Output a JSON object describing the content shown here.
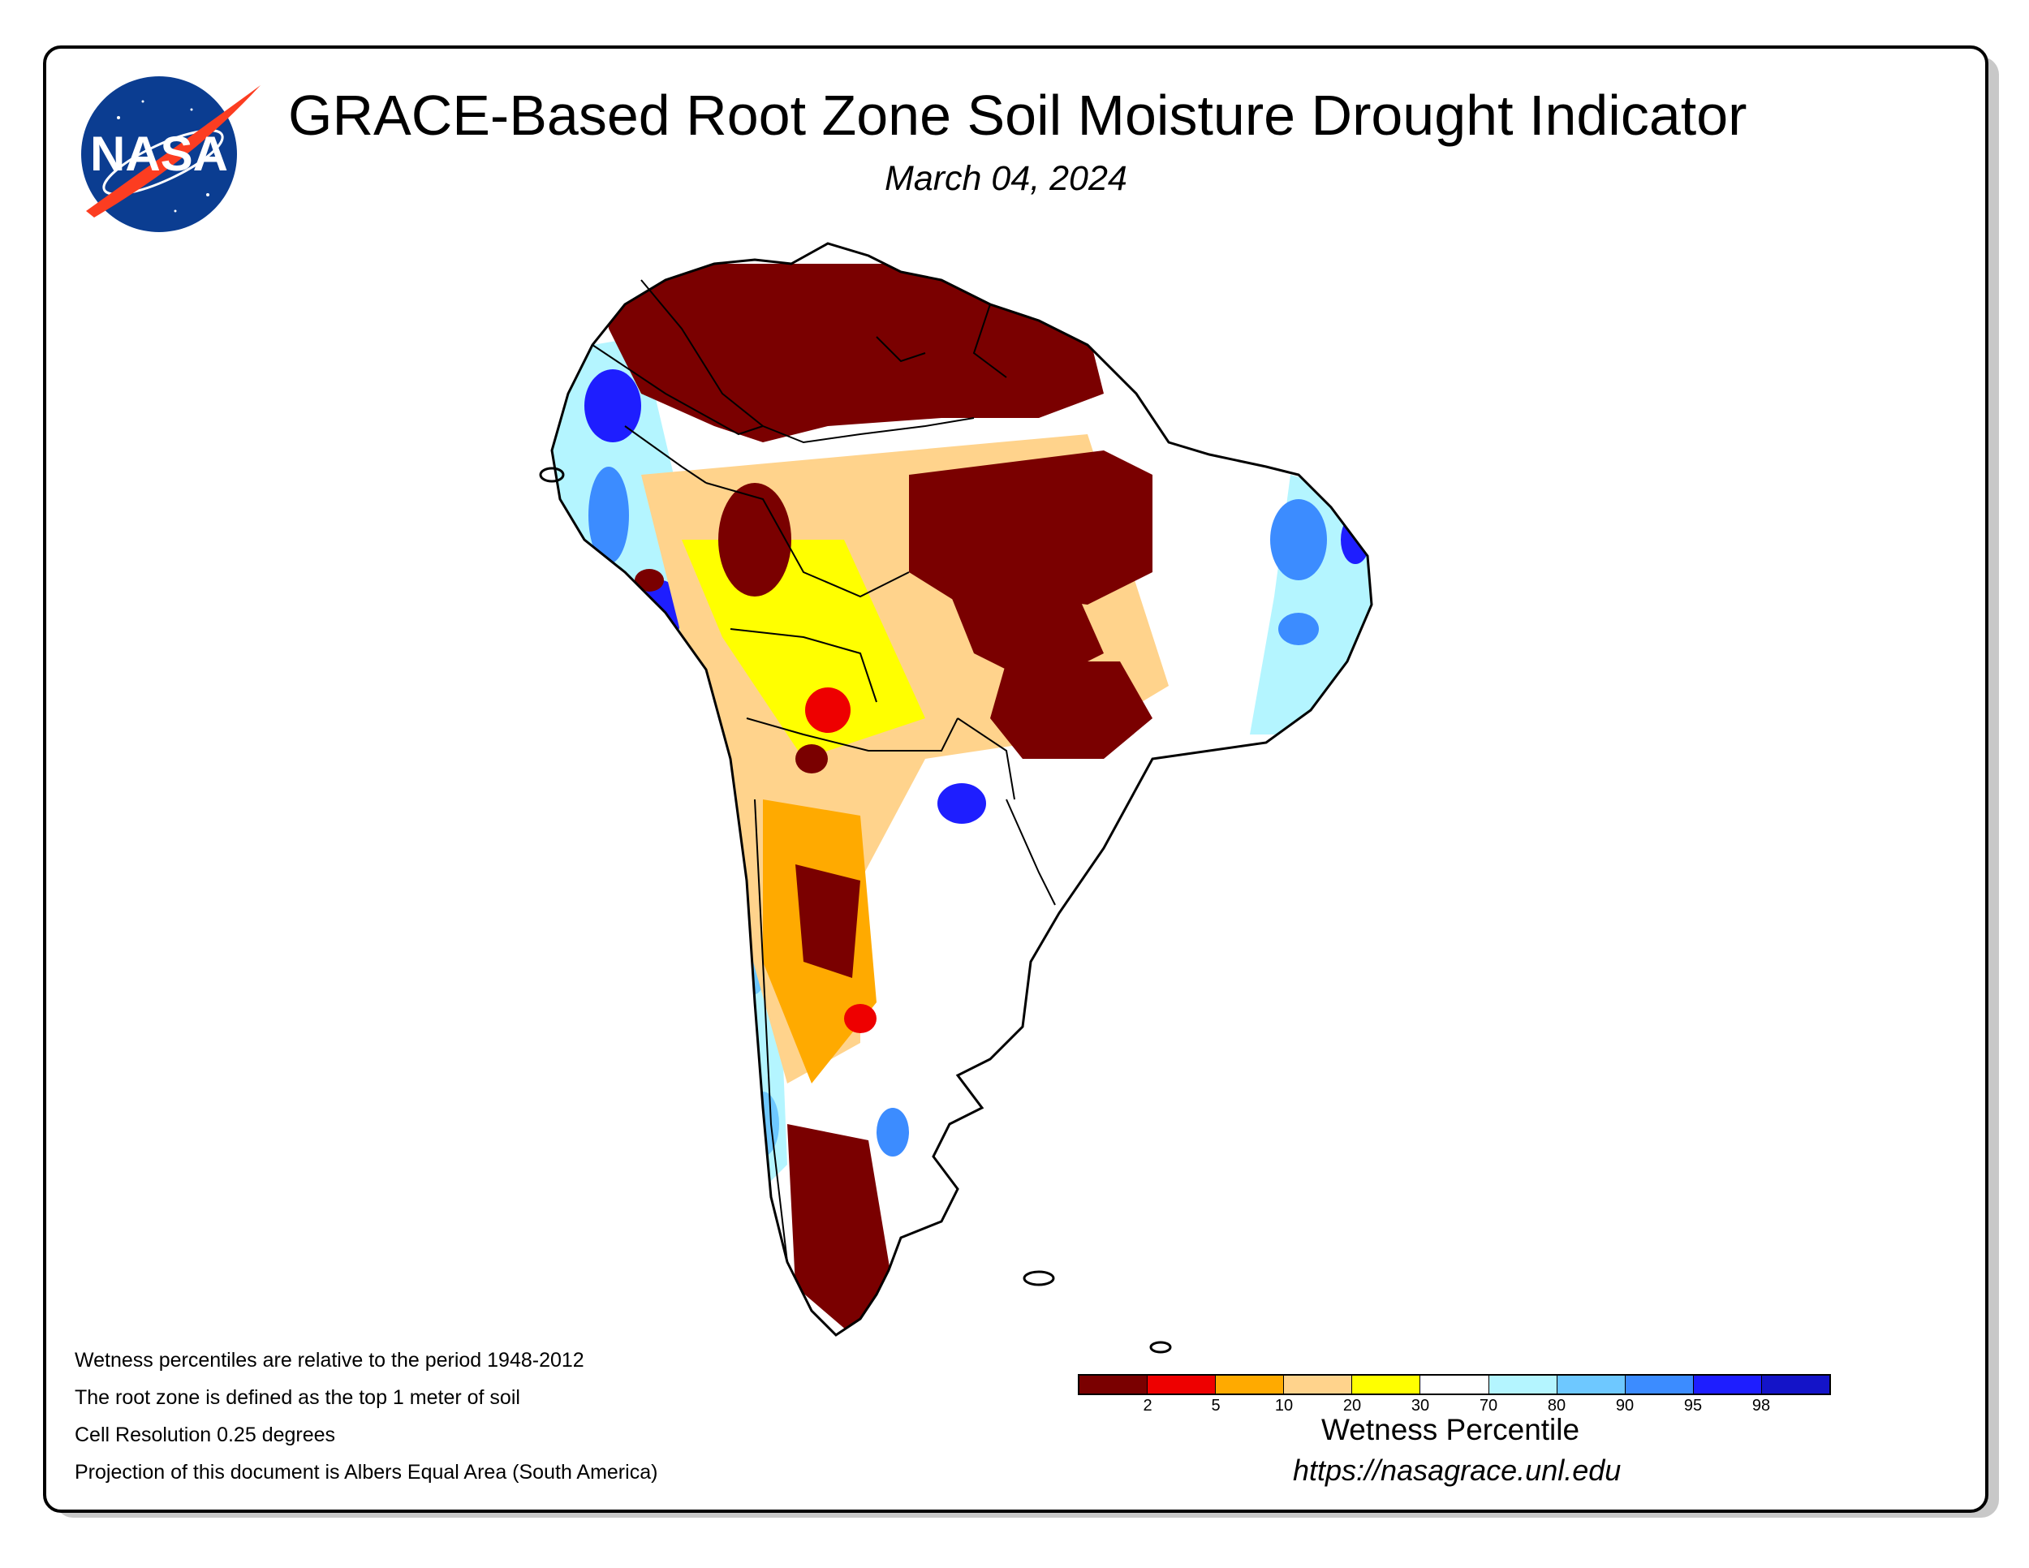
{
  "header": {
    "title": "GRACE-Based Root Zone Soil Moisture Drought Indicator",
    "date": "March 04, 2024",
    "logo_text": "NASA"
  },
  "notes": [
    "Wetness percentiles are relative to the period 1948-2012",
    "The root zone is defined as the top 1 meter of soil",
    "Cell Resolution 0.25 degrees",
    "Projection of this document is Albers Equal Area (South America)"
  ],
  "legend": {
    "title": "Wetness Percentile",
    "url": "https://nasagrace.unl.edu",
    "ticks": [
      "2",
      "5",
      "10",
      "20",
      "30",
      "70",
      "80",
      "90",
      "95",
      "98"
    ],
    "colors": [
      "#7a0000",
      "#ee0000",
      "#ffaa00",
      "#ffd38c",
      "#ffff00",
      "#ffffff",
      "#b4f5ff",
      "#6ec8ff",
      "#3c8cff",
      "#1e1eff",
      "#1414c8"
    ]
  }
}
